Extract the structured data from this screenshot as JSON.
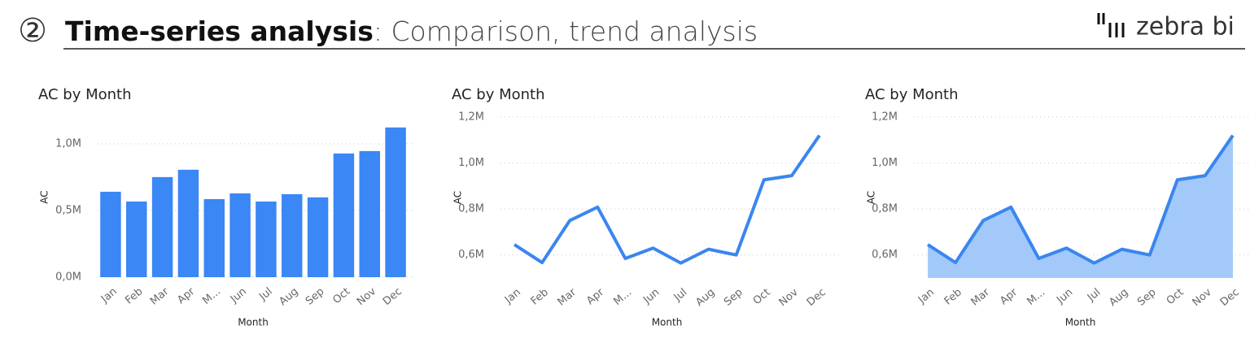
{
  "header": {
    "number": "②",
    "title": "Time-series analysis",
    "subtitle": ": Comparison, trend analysis",
    "logo": "zebra bi"
  },
  "chart_data": [
    {
      "type": "bar",
      "title": "AC by Month",
      "x_label": "Month",
      "y_label": "AC",
      "categories": [
        "Jan",
        "Feb",
        "Mar",
        "Apr",
        "M...",
        "Jun",
        "Jul",
        "Aug",
        "Sep",
        "Oct",
        "Nov",
        "Dec"
      ],
      "values": [
        640000,
        567000,
        750000,
        805000,
        585000,
        628000,
        567000,
        622000,
        598000,
        927000,
        945000,
        1122000
      ],
      "color": "#3a87f5",
      "ylim": [
        0,
        1200000
      ],
      "yticks": [
        {
          "value": 0,
          "label": "0,0M"
        },
        {
          "value": 500000,
          "label": "0,5M"
        },
        {
          "value": 1000000,
          "label": "1,0M"
        }
      ],
      "grid": true
    },
    {
      "type": "line",
      "title": "AC by Month",
      "x_label": "Month",
      "y_label": "AC",
      "categories": [
        "Jan",
        "Feb",
        "Mar",
        "Apr",
        "M...",
        "Jun",
        "Jul",
        "Aug",
        "Sep",
        "Oct",
        "Nov",
        "Dec"
      ],
      "values": [
        645000,
        567000,
        750000,
        808000,
        585000,
        630000,
        565000,
        625000,
        600000,
        927000,
        945000,
        1120000
      ],
      "color": "#3a86f0",
      "ylim": [
        500000,
        1200000
      ],
      "yticks": [
        {
          "value": 600000,
          "label": "0,6M"
        },
        {
          "value": 800000,
          "label": "0,8M"
        },
        {
          "value": 1000000,
          "label": "1,0M"
        },
        {
          "value": 1200000,
          "label": "1,2M"
        }
      ],
      "grid": true
    },
    {
      "type": "area",
      "title": "AC by Month",
      "x_label": "Month",
      "y_label": "AC",
      "categories": [
        "Jan",
        "Feb",
        "Mar",
        "Apr",
        "M...",
        "Jun",
        "Jul",
        "Aug",
        "Sep",
        "Oct",
        "Nov",
        "Dec"
      ],
      "values": [
        645000,
        567000,
        750000,
        808000,
        585000,
        630000,
        565000,
        625000,
        600000,
        927000,
        945000,
        1120000
      ],
      "color": "#3a86f0",
      "fill": "#a2c9fa",
      "ylim": [
        500000,
        1200000
      ],
      "yticks": [
        {
          "value": 600000,
          "label": "0,6M"
        },
        {
          "value": 800000,
          "label": "0,8M"
        },
        {
          "value": 1000000,
          "label": "1,0M"
        },
        {
          "value": 1200000,
          "label": "1,2M"
        }
      ],
      "grid": true
    }
  ]
}
